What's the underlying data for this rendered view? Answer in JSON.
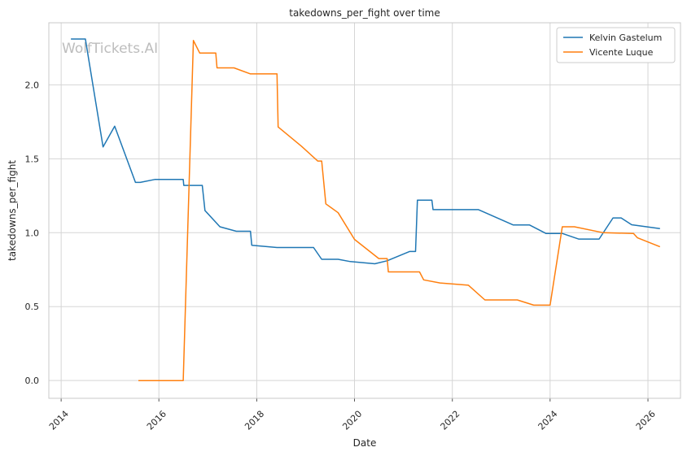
{
  "watermark": "WolfTickets.AI",
  "chart_data": {
    "type": "line",
    "title": "takedowns_per_fight over time",
    "xlabel": "Date",
    "ylabel": "takedowns_per_fight",
    "xlim": [
      "2013-10-01",
      "2026-09-01"
    ],
    "ylim": [
      -0.12,
      2.42
    ],
    "x_ticks": [
      "2014",
      "2016",
      "2018",
      "2020",
      "2022",
      "2024",
      "2026"
    ],
    "y_ticks": [
      "0.0",
      "0.5",
      "1.0",
      "1.5",
      "2.0"
    ],
    "y_tick_values": [
      0.0,
      0.5,
      1.0,
      1.5,
      2.0
    ],
    "grid": true,
    "legend_position": "top-right",
    "series": [
      {
        "name": "Kelvin Gastelum",
        "color": "#1f77b4",
        "points": [
          [
            "2014-03-15",
            2.31
          ],
          [
            "2014-07-01",
            2.31
          ],
          [
            "2014-11-10",
            1.58
          ],
          [
            "2015-02-05",
            1.72
          ],
          [
            "2015-07-10",
            1.34
          ],
          [
            "2015-08-15",
            1.34
          ],
          [
            "2015-12-01",
            1.36
          ],
          [
            "2016-07-01",
            1.36
          ],
          [
            "2016-07-05",
            1.32
          ],
          [
            "2016-11-20",
            1.32
          ],
          [
            "2016-12-10",
            1.15
          ],
          [
            "2017-04-01",
            1.04
          ],
          [
            "2017-08-01",
            1.01
          ],
          [
            "2017-11-15",
            1.01
          ],
          [
            "2017-11-25",
            0.915
          ],
          [
            "2018-06-01",
            0.9
          ],
          [
            "2019-03-01",
            0.9
          ],
          [
            "2019-05-01",
            0.82
          ],
          [
            "2019-09-01",
            0.82
          ],
          [
            "2019-12-01",
            0.805
          ],
          [
            "2020-06-01",
            0.79
          ],
          [
            "2020-09-01",
            0.81
          ],
          [
            "2021-02-15",
            0.873
          ],
          [
            "2021-04-01",
            0.873
          ],
          [
            "2021-04-15",
            1.22
          ],
          [
            "2021-08-01",
            1.22
          ],
          [
            "2021-08-10",
            1.156
          ],
          [
            "2022-07-15",
            1.156
          ],
          [
            "2023-04-01",
            1.052
          ],
          [
            "2023-08-01",
            1.052
          ],
          [
            "2023-12-01",
            0.995
          ],
          [
            "2024-04-01",
            0.995
          ],
          [
            "2024-08-01",
            0.957
          ],
          [
            "2025-01-01",
            0.957
          ],
          [
            "2025-04-15",
            1.1
          ],
          [
            "2025-06-15",
            1.1
          ],
          [
            "2025-09-01",
            1.054
          ],
          [
            "2026-04-01",
            1.028
          ]
        ]
      },
      {
        "name": "Vicente Luque",
        "color": "#ff7f0e",
        "points": [
          [
            "2015-08-01",
            0.0
          ],
          [
            "2016-07-01",
            0.0
          ],
          [
            "2016-09-15",
            2.3
          ],
          [
            "2016-11-01",
            2.215
          ],
          [
            "2017-03-01",
            2.215
          ],
          [
            "2017-03-10",
            2.115
          ],
          [
            "2017-07-15",
            2.115
          ],
          [
            "2017-11-15",
            2.074
          ],
          [
            "2018-06-01",
            2.074
          ],
          [
            "2018-06-10",
            1.715
          ],
          [
            "2018-12-01",
            1.585
          ],
          [
            "2019-04-01",
            1.485
          ],
          [
            "2019-05-01",
            1.485
          ],
          [
            "2019-06-01",
            1.195
          ],
          [
            "2019-09-01",
            1.135
          ],
          [
            "2020-01-01",
            0.955
          ],
          [
            "2020-07-01",
            0.825
          ],
          [
            "2020-09-01",
            0.825
          ],
          [
            "2020-09-10",
            0.735
          ],
          [
            "2021-05-01",
            0.735
          ],
          [
            "2021-06-01",
            0.681
          ],
          [
            "2021-10-01",
            0.66
          ],
          [
            "2022-05-01",
            0.645
          ],
          [
            "2022-09-01",
            0.545
          ],
          [
            "2023-05-01",
            0.545
          ],
          [
            "2023-09-01",
            0.51
          ],
          [
            "2024-01-01",
            0.51
          ],
          [
            "2024-04-01",
            1.04
          ],
          [
            "2024-07-01",
            1.04
          ],
          [
            "2025-02-01",
            1.0
          ],
          [
            "2025-09-15",
            0.995
          ],
          [
            "2025-10-15",
            0.965
          ],
          [
            "2026-04-01",
            0.905
          ]
        ]
      }
    ]
  }
}
